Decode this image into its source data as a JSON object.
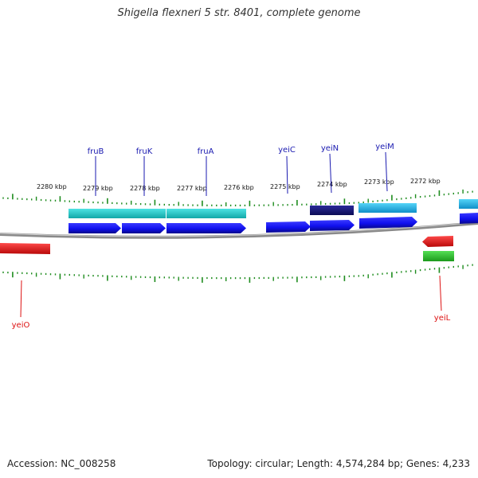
{
  "title": "Shigella flexneri 5 str. 8401, complete genome",
  "footer": {
    "accession": "Accession: NC_008258",
    "stats": "Topology: circular; Length: 4,574,284 bp; Genes: 4,233"
  },
  "colors": {
    "backbone": "#8a8a8a",
    "tick": "#1e8c1e",
    "forward_cds": "#1010ee",
    "forward_cds_dark": "#14147a",
    "forward_cds_light": "#1cb8e8",
    "forward_rna": "#22cccc",
    "reverse_cds": "#ee1111",
    "reverse_rna": "#33cc33",
    "forward_label": "#1a1ab0",
    "reverse_label": "#dd1111"
  },
  "scale_labels": [
    "2280 kbp",
    "2279 kbp",
    "2278 kbp",
    "2277 kbp",
    "2276 kbp",
    "2275 kbp",
    "2274 kbp",
    "2273 kbp",
    "2272 kbp"
  ],
  "forward_gene_labels": [
    "fruB",
    "fruK",
    "fruA",
    "yeiC",
    "yeiN",
    "yeiM"
  ],
  "reverse_gene_labels": [
    "yeiO",
    "yeiL"
  ]
}
